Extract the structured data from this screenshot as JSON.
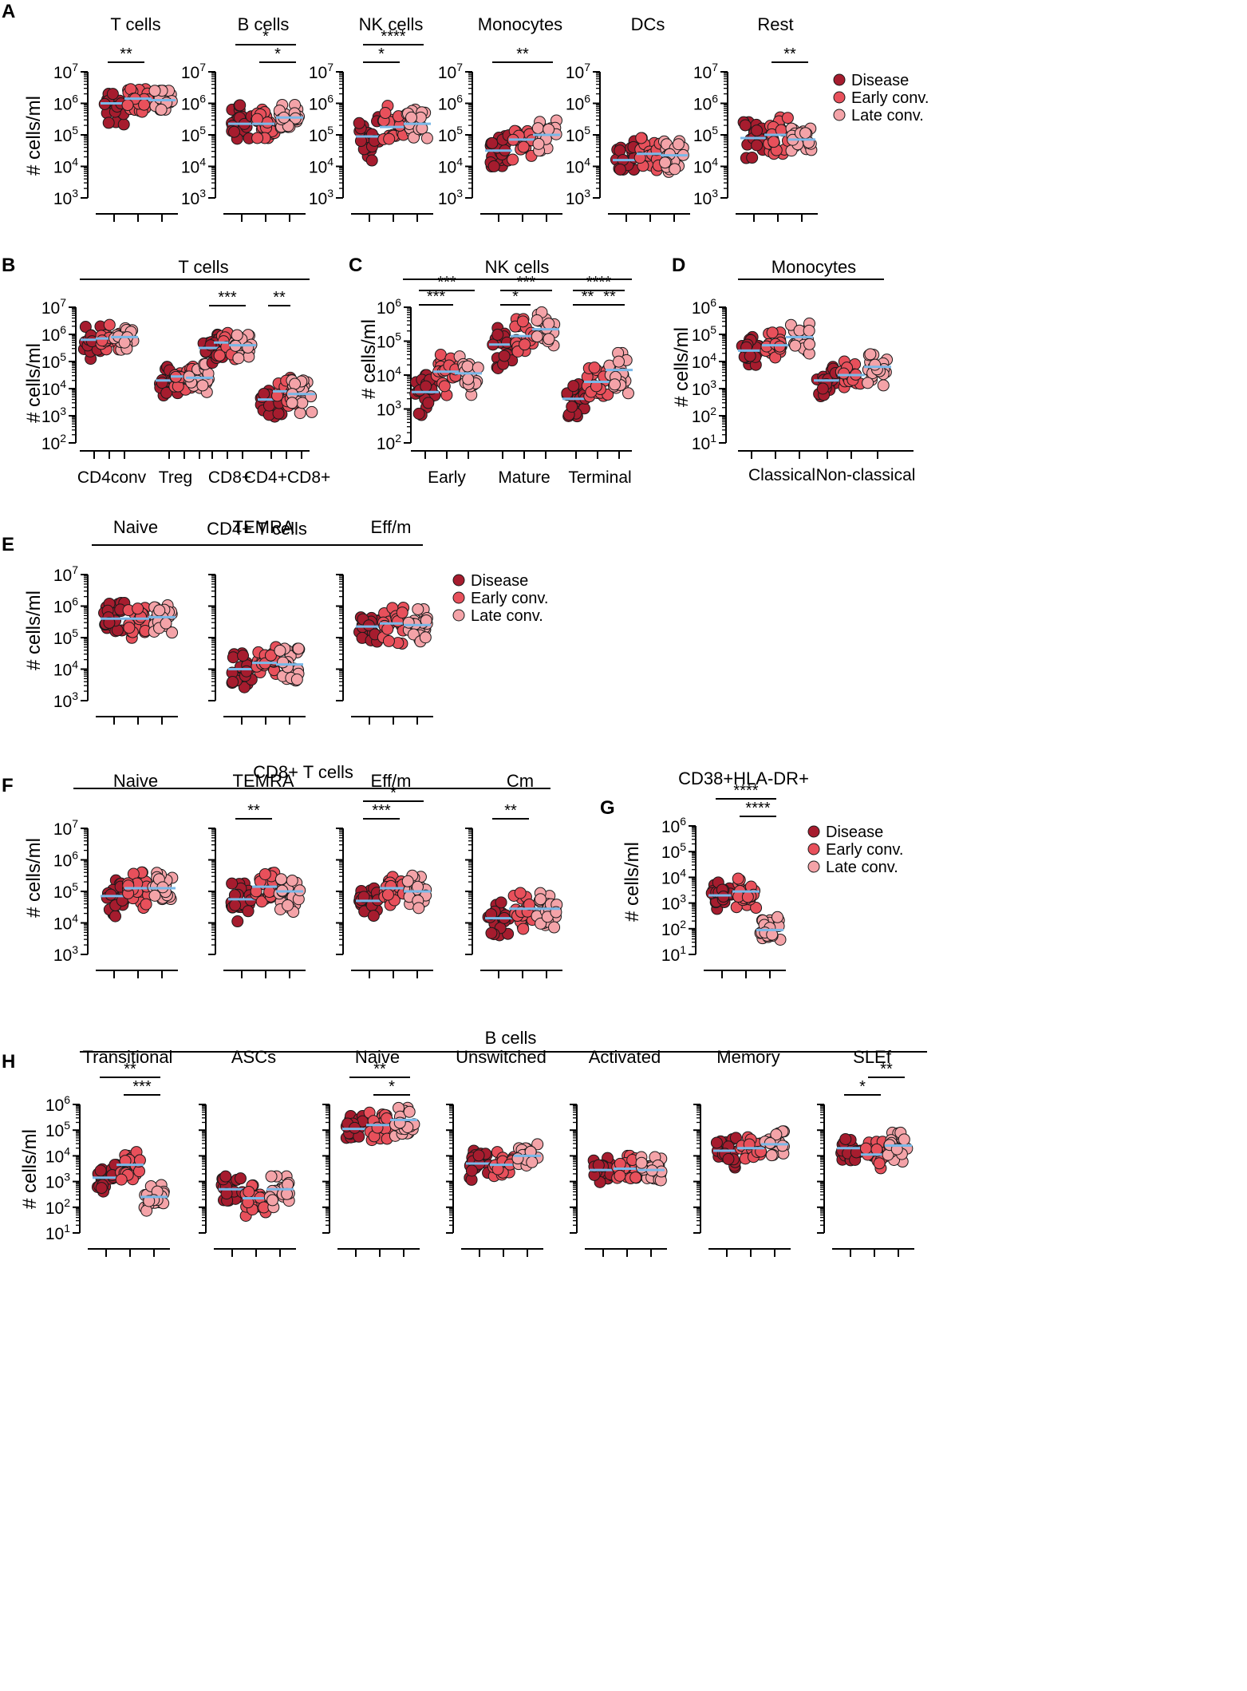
{
  "figure": {
    "ylabel": "# cells/ml",
    "legend": [
      "Disease",
      "Early conv.",
      "Late conv."
    ],
    "colors": {
      "disease": "#a61c2e",
      "early": "#e8505b",
      "late": "#f4a3a8",
      "median": "#7ab8e8",
      "axis": "#000000"
    }
  },
  "chart_data": [
    {
      "panel": "A",
      "title": "T cells",
      "type": "scatter",
      "ylim_log": [
        3,
        7
      ],
      "medians_log": [
        6.0,
        6.15,
        6.1
      ],
      "spread": [
        [
          5.2,
          6.3
        ],
        [
          5.4,
          6.45
        ],
        [
          5.8,
          6.4
        ]
      ],
      "sig": [
        {
          "from": 0,
          "to": 1,
          "label": "**"
        }
      ]
    },
    {
      "panel": "A",
      "title": "B cells",
      "type": "scatter",
      "ylim_log": [
        3,
        7
      ],
      "medians_log": [
        5.35,
        5.35,
        5.55
      ],
      "spread": [
        [
          4.6,
          5.95
        ],
        [
          4.9,
          5.8
        ],
        [
          5.1,
          5.95
        ]
      ],
      "sig": [
        {
          "from": 1,
          "to": 2,
          "label": "*"
        },
        {
          "from": 0,
          "to": 2,
          "label": "*"
        }
      ]
    },
    {
      "panel": "A",
      "title": "NK cells",
      "type": "scatter",
      "ylim_log": [
        3,
        7
      ],
      "medians_log": [
        4.95,
        5.25,
        5.35
      ],
      "spread": [
        [
          4.0,
          5.7
        ],
        [
          4.6,
          5.95
        ],
        [
          4.7,
          5.8
        ]
      ],
      "sig": [
        {
          "from": 0,
          "to": 1,
          "label": "*"
        },
        {
          "from": 0,
          "to": 2,
          "label": "****"
        }
      ]
    },
    {
      "panel": "A",
      "title": "Monocytes",
      "type": "scatter",
      "ylim_log": [
        3,
        7
      ],
      "medians_log": [
        4.5,
        4.85,
        5.0
      ],
      "spread": [
        [
          3.6,
          5.3
        ],
        [
          3.9,
          5.6
        ],
        [
          4.5,
          5.6
        ]
      ],
      "sig": [
        {
          "from": 0,
          "to": 2,
          "label": "**"
        }
      ]
    },
    {
      "panel": "A",
      "title": "DCs",
      "type": "scatter",
      "ylim_log": [
        3,
        7
      ],
      "medians_log": [
        4.2,
        4.4,
        4.35
      ],
      "spread": [
        [
          3.9,
          5.0
        ],
        [
          3.5,
          4.9
        ],
        [
          3.8,
          4.8
        ]
      ],
      "sig": []
    },
    {
      "panel": "A",
      "title": "Rest",
      "type": "scatter",
      "ylim_log": [
        3,
        7
      ],
      "medians_log": [
        4.9,
        5.0,
        4.85
      ],
      "spread": [
        [
          3.85,
          5.5
        ],
        [
          4.4,
          5.95
        ],
        [
          4.5,
          5.2
        ]
      ],
      "sig": [
        {
          "from": 1,
          "to": 2,
          "label": "**"
        }
      ]
    },
    {
      "panel": "B",
      "title": "T cells",
      "type": "scatter",
      "ylim_log": [
        2,
        7
      ],
      "categories": [
        "CD4conv",
        "Treg",
        "CD8+",
        "CD4+CD8+"
      ],
      "medians_log": [
        5.8,
        5.85,
        5.9,
        4.3,
        4.45,
        4.4,
        5.5,
        5.7,
        5.6,
        3.6,
        3.9,
        3.8
      ],
      "sig": [
        {
          "from": 6,
          "to": 7,
          "label": "***"
        },
        {
          "from": 9,
          "to": 10,
          "label": "**"
        }
      ]
    },
    {
      "panel": "C",
      "title": "NK cells",
      "type": "scatter",
      "ylim_log": [
        2,
        6
      ],
      "categories": [
        "Early",
        "Mature",
        "Terminal"
      ],
      "medians_log": [
        3.5,
        4.1,
        4.05,
        4.9,
        5.15,
        5.35,
        3.3,
        3.8,
        4.15
      ],
      "sig": [
        {
          "from": 0,
          "to": 1,
          "label": "***"
        },
        {
          "from": 0,
          "to": 2,
          "label": "***"
        },
        {
          "from": 3,
          "to": 4,
          "label": "*"
        },
        {
          "from": 3,
          "to": 5,
          "label": "***"
        },
        {
          "from": 6,
          "to": 7,
          "label": "**"
        },
        {
          "from": 7,
          "to": 8,
          "label": "**"
        },
        {
          "from": 6,
          "to": 8,
          "label": "****"
        }
      ]
    },
    {
      "panel": "D",
      "title": "Monocytes",
      "type": "scatter",
      "ylim_log": [
        1,
        6
      ],
      "categories": [
        "Classical",
        "Non-classical"
      ],
      "medians_log": [
        4.4,
        4.6,
        4.9,
        3.3,
        3.5,
        3.8
      ],
      "sig": []
    },
    {
      "panel": "E",
      "title": "Naive",
      "group": "CD4+ T cells",
      "type": "scatter",
      "ylim_log": [
        3,
        7
      ],
      "medians_log": [
        5.6,
        5.6,
        5.65
      ],
      "sig": []
    },
    {
      "panel": "E",
      "title": "TEMRA",
      "group": "CD4+ T cells",
      "type": "scatter",
      "ylim_log": [
        3,
        7
      ],
      "medians_log": [
        4.0,
        4.2,
        4.15
      ],
      "sig": []
    },
    {
      "panel": "E",
      "title": "Eff/m",
      "group": "CD4+ T cells",
      "type": "scatter",
      "ylim_log": [
        3,
        7
      ],
      "medians_log": [
        5.35,
        5.45,
        5.4
      ],
      "sig": []
    },
    {
      "panel": "F",
      "title": "Naive",
      "group": "CD8+ T cells",
      "type": "scatter",
      "ylim_log": [
        3,
        7
      ],
      "medians_log": [
        4.85,
        5.1,
        5.1
      ],
      "sig": []
    },
    {
      "panel": "F",
      "title": "TEMRA",
      "group": "CD8+ T cells",
      "type": "scatter",
      "ylim_log": [
        3,
        7
      ],
      "medians_log": [
        4.75,
        5.15,
        5.0
      ],
      "sig": [
        {
          "from": 0,
          "to": 1,
          "label": "**"
        }
      ]
    },
    {
      "panel": "F",
      "title": "Eff/m",
      "group": "CD8+ T cells",
      "type": "scatter",
      "ylim_log": [
        3,
        7
      ],
      "medians_log": [
        4.7,
        5.1,
        5.0
      ],
      "sig": [
        {
          "from": 0,
          "to": 1,
          "label": "***"
        },
        {
          "from": 0,
          "to": 2,
          "label": "*"
        }
      ]
    },
    {
      "panel": "F",
      "title": "Cm",
      "group": "CD8+ T cells",
      "type": "scatter",
      "ylim_log": [
        3,
        7
      ],
      "medians_log": [
        4.15,
        4.45,
        4.45
      ],
      "sig": [
        {
          "from": 0,
          "to": 1,
          "label": "**"
        }
      ]
    },
    {
      "panel": "G",
      "title": "CD38+HLA-DR+",
      "type": "scatter",
      "ylim_log": [
        1,
        6
      ],
      "medians_log": [
        3.3,
        3.45,
        1.95
      ],
      "sig": [
        {
          "from": 1,
          "to": 2,
          "label": "****"
        },
        {
          "from": 0,
          "to": 2,
          "label": "****"
        }
      ]
    },
    {
      "panel": "H",
      "title": "Transitional",
      "group": "B cells",
      "type": "scatter",
      "ylim_log": [
        1,
        6
      ],
      "medians_log": [
        3.15,
        3.65,
        2.4
      ],
      "sig": [
        {
          "from": 1,
          "to": 2,
          "label": "***"
        },
        {
          "from": 0,
          "to": 2,
          "label": "**"
        }
      ]
    },
    {
      "panel": "H",
      "title": "ASCs",
      "group": "B cells",
      "type": "scatter",
      "ylim_log": [
        1,
        6
      ],
      "medians_log": [
        2.7,
        2.35,
        2.7
      ],
      "sig": []
    },
    {
      "panel": "H",
      "title": "Naive",
      "group": "B cells",
      "type": "scatter",
      "ylim_log": [
        1,
        6
      ],
      "medians_log": [
        5.05,
        5.2,
        5.4
      ],
      "sig": [
        {
          "from": 1,
          "to": 2,
          "label": "*"
        },
        {
          "from": 0,
          "to": 2,
          "label": "**"
        }
      ]
    },
    {
      "panel": "H",
      "title": "Unswitched",
      "group": "B cells",
      "type": "scatter",
      "ylim_log": [
        1,
        6
      ],
      "medians_log": [
        3.7,
        3.65,
        4.0
      ],
      "sig": []
    },
    {
      "panel": "H",
      "title": "Activated",
      "group": "B cells",
      "type": "scatter",
      "ylim_log": [
        1,
        6
      ],
      "medians_log": [
        3.45,
        3.5,
        3.45
      ],
      "sig": []
    },
    {
      "panel": "H",
      "title": "Memory",
      "group": "B cells",
      "type": "scatter",
      "ylim_log": [
        1,
        6
      ],
      "medians_log": [
        4.2,
        4.3,
        4.45
      ],
      "sig": []
    },
    {
      "panel": "H",
      "title": "SLEf",
      "group": "B cells",
      "type": "scatter",
      "ylim_log": [
        1,
        6
      ],
      "medians_log": [
        4.3,
        4.05,
        4.4
      ],
      "sig": [
        {
          "from": 0,
          "to": 1,
          "label": "*"
        },
        {
          "from": 1,
          "to": 2,
          "label": "**"
        }
      ]
    }
  ],
  "panel_letters": [
    "A",
    "B",
    "C",
    "D",
    "E",
    "F",
    "G",
    "H"
  ],
  "group_titles": {
    "B": "T cells",
    "C": "NK cells",
    "D": "Monocytes",
    "E": "CD4+ T cells",
    "F": "CD8+ T cells",
    "H": "B cells"
  },
  "category_labels": {
    "B": [
      "CD4conv",
      "Treg",
      "CD8+",
      "CD4+CD8+"
    ],
    "C": [
      "Early",
      "Mature",
      "Terminal"
    ],
    "D": [
      "Classical",
      "Non-classical"
    ]
  }
}
